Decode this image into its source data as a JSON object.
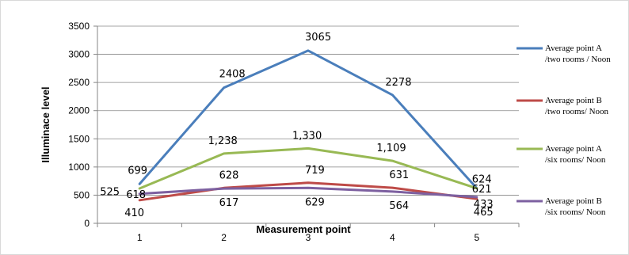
{
  "chart_data": {
    "type": "line",
    "xlabel": "Measurement point",
    "ylabel": "Illuminace level",
    "categories": [
      "1",
      "2",
      "3",
      "4",
      "5"
    ],
    "ylim": [
      0,
      3500
    ],
    "y_ticks": [
      "0",
      "500",
      "1000",
      "1500",
      "2000",
      "2500",
      "3000",
      "3500"
    ],
    "grid": "horizontal",
    "legend_position": "right",
    "series": [
      {
        "name_line1": "Average point A",
        "name_line2": "/two rooms / Noon",
        "color": "#4a7ebb",
        "values": [
          699,
          2408,
          3065,
          2278,
          624
        ],
        "labels": [
          "699",
          "2408",
          "3065",
          "2278",
          "624"
        ]
      },
      {
        "name_line1": "Average point B",
        "name_line2": "/two rooms/ Noon",
        "color": "#be4b48",
        "values": [
          410,
          628,
          719,
          631,
          433
        ],
        "labels": [
          "410",
          "628",
          "719",
          "631",
          "433"
        ]
      },
      {
        "name_line1": "Average point A",
        "name_line2": "/six rooms/ Noon",
        "color": "#98b954",
        "values": [
          618,
          1238,
          1330,
          1109,
          621
        ],
        "labels": [
          "618",
          "1,238",
          "1,330",
          "1,109",
          "621"
        ]
      },
      {
        "name_line1": "Average point B",
        "name_line2": "/six rooms/ Noon",
        "color": "#7d60a0",
        "values": [
          525,
          617,
          629,
          564,
          465
        ],
        "labels": [
          "525",
          "617",
          "629",
          "564",
          "465"
        ]
      }
    ]
  }
}
